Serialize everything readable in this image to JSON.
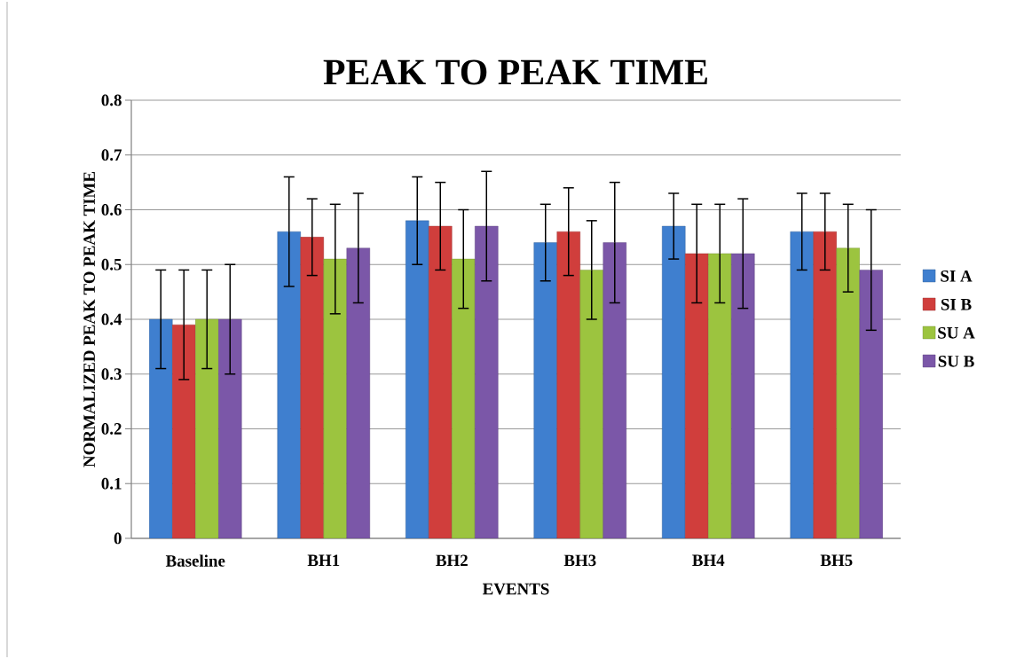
{
  "chart_data": {
    "type": "bar",
    "title": "PEAK TO PEAK TIME",
    "xlabel": "EVENTS",
    "ylabel": "NORMALIZED PEAK TO PEAK TIME",
    "categories": [
      "Baseline",
      "BH1",
      "BH2",
      "BH3",
      "BH4",
      "BH5"
    ],
    "series": [
      {
        "name": "SI A",
        "color": "#3f7fcf",
        "values": [
          0.4,
          0.56,
          0.58,
          0.54,
          0.57,
          0.56
        ],
        "errors": [
          0.09,
          0.1,
          0.08,
          0.07,
          0.06,
          0.07
        ]
      },
      {
        "name": "SI B",
        "color": "#d03e3c",
        "values": [
          0.39,
          0.55,
          0.57,
          0.56,
          0.52,
          0.56
        ],
        "errors": [
          0.1,
          0.07,
          0.08,
          0.08,
          0.09,
          0.07
        ]
      },
      {
        "name": "SU A",
        "color": "#9cc43f",
        "values": [
          0.4,
          0.51,
          0.51,
          0.49,
          0.52,
          0.53
        ],
        "errors": [
          0.09,
          0.1,
          0.09,
          0.09,
          0.09,
          0.08
        ]
      },
      {
        "name": "SU B",
        "color": "#7b57a8",
        "values": [
          0.4,
          0.53,
          0.57,
          0.54,
          0.52,
          0.49
        ],
        "errors": [
          0.1,
          0.1,
          0.1,
          0.11,
          0.1,
          0.11
        ]
      }
    ],
    "ylim": [
      0,
      0.8
    ],
    "yticks": [
      0,
      0.1,
      0.2,
      0.3,
      0.4,
      0.5,
      0.6,
      0.7,
      0.8
    ],
    "grid": "y",
    "legend": "right"
  }
}
